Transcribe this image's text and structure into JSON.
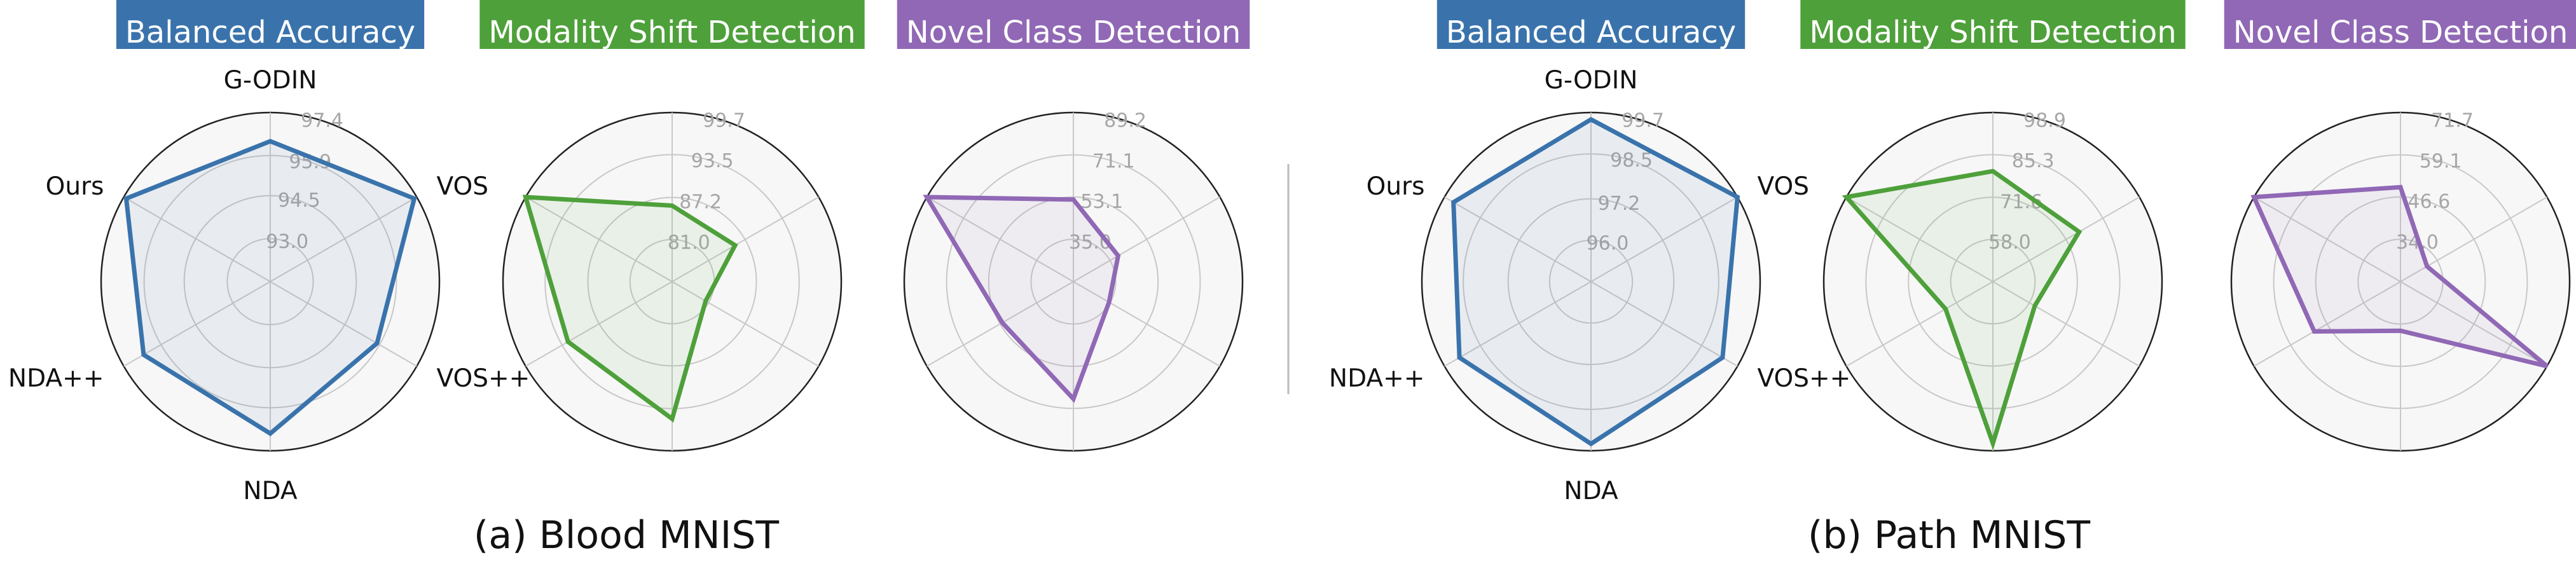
{
  "colors": {
    "balanced_accuracy": "#3a73ac",
    "modality_shift": "#4ea03a",
    "novel_class": "#9068b5"
  },
  "chart_data": [
    {
      "type": "radar",
      "title": "Balanced Accuracy",
      "figure": "(a) Blood MNIST",
      "axes": [
        "G-ODIN",
        "VOS",
        "VOS++",
        "NDA",
        "NDA++",
        "Ours"
      ],
      "show_axis_labels": true,
      "ticks": [
        "93.0",
        "94.5",
        "95.9",
        "97.4"
      ],
      "range": [
        91.5,
        97.4
      ],
      "values": [
        96.4,
        97.3,
        95.8,
        96.8,
        96.6,
        97.3
      ],
      "color": "#3a73ac"
    },
    {
      "type": "radar",
      "title": "Modality Shift Detection",
      "figure": "(a) Blood MNIST",
      "axes": [
        "G-ODIN",
        "VOS",
        "VOS++",
        "NDA",
        "NDA++",
        "Ours"
      ],
      "show_axis_labels": false,
      "ticks": [
        "81.0",
        "87.2",
        "93.5",
        "99.7"
      ],
      "range": [
        74.8,
        99.7
      ],
      "values": [
        86.0,
        85.5,
        80.5,
        95.0,
        92.5,
        99.7
      ],
      "color": "#4ea03a"
    },
    {
      "type": "radar",
      "title": "Novel Class Detection",
      "figure": "(a) Blood MNIST",
      "axes": [
        "G-ODIN",
        "VOS",
        "VOS++",
        "NDA",
        "NDA++",
        "Ours"
      ],
      "show_axis_labels": false,
      "ticks": [
        "35.0",
        "53.1",
        "71.1",
        "89.2"
      ],
      "range": [
        16.9,
        89.2
      ],
      "values": [
        52.0,
        39.0,
        34.5,
        67.0,
        52.0,
        89.2
      ],
      "color": "#9068b5"
    },
    {
      "type": "radar",
      "title": "Balanced Accuracy",
      "figure": "(b) Path MNIST",
      "axes": [
        "G-ODIN",
        "VOS",
        "VOS++",
        "NDA",
        "NDA++",
        "Ours"
      ],
      "show_axis_labels": true,
      "ticks": [
        "96.0",
        "97.2",
        "98.5",
        "99.7"
      ],
      "range": [
        94.8,
        99.7
      ],
      "values": [
        99.5,
        99.7,
        99.2,
        99.5,
        99.2,
        99.4
      ],
      "color": "#3a73ac"
    },
    {
      "type": "radar",
      "title": "Modality Shift Detection",
      "figure": "(b) Path MNIST",
      "axes": [
        "G-ODIN",
        "VOS",
        "VOS++",
        "NDA",
        "NDA++",
        "Ours"
      ],
      "show_axis_labels": false,
      "ticks": [
        "58.0",
        "71.6",
        "85.3",
        "98.9"
      ],
      "range": [
        44.4,
        98.9
      ],
      "values": [
        80.0,
        76.5,
        60.0,
        96.5,
        62.0,
        98.9
      ],
      "color": "#4ea03a"
    },
    {
      "type": "radar",
      "title": "Novel Class Detection",
      "figure": "(b) Path MNIST",
      "axes": [
        "G-ODIN",
        "VOS",
        "VOS++",
        "NDA",
        "NDA++",
        "Ours"
      ],
      "show_axis_labels": false,
      "ticks": [
        "34.0",
        "46.6",
        "59.1",
        "71.7"
      ],
      "range": [
        21.4,
        71.7
      ],
      "values": [
        49.5,
        30.5,
        71.7,
        36.0,
        51.0,
        71.7
      ],
      "color": "#9068b5"
    }
  ],
  "captions": {
    "left": "(a) Blood MNIST",
    "right": "(b) Path MNIST"
  }
}
